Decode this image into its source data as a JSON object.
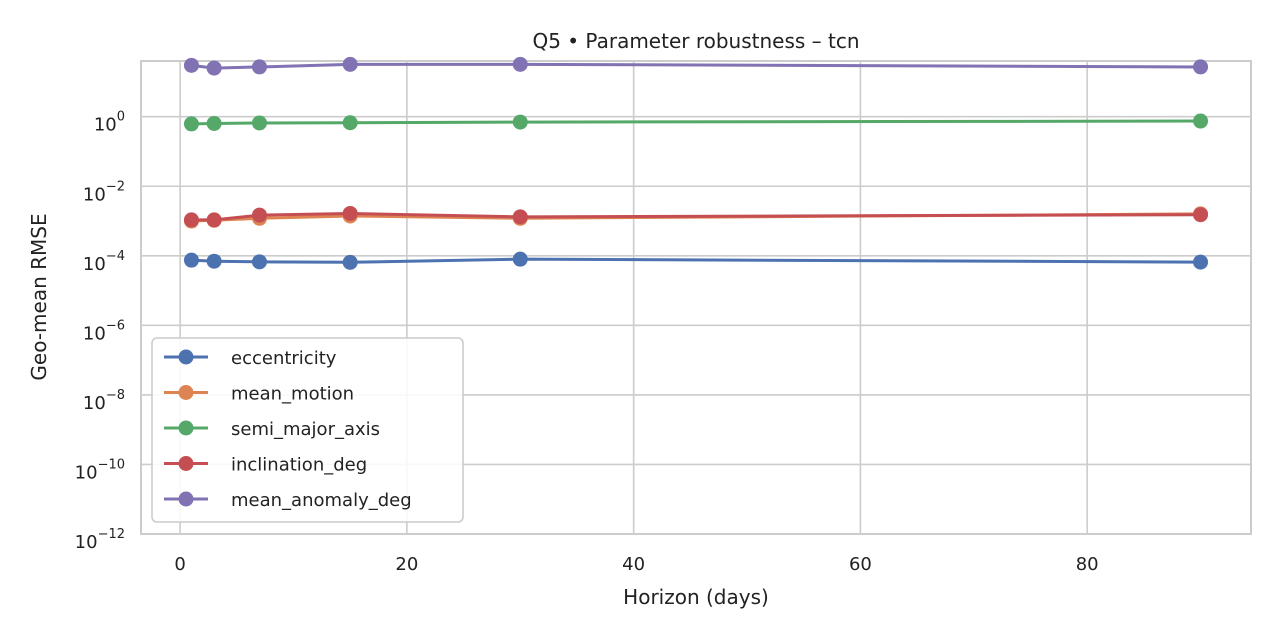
{
  "chart_data": {
    "type": "line",
    "title": "Q5 • Parameter robustness – tcn",
    "xlabel": "Horizon (days)",
    "ylabel": "Geo-mean RMSE",
    "x": [
      1,
      3,
      7,
      15,
      30,
      90
    ],
    "xlim": [
      -3.45,
      94.45
    ],
    "x_ticks": [
      0,
      20,
      40,
      60,
      80
    ],
    "y_scale": "log",
    "ylim": [
      1e-12,
      40
    ],
    "y_ticks": [
      {
        "value": 1e-12,
        "base": "10",
        "exp": "−12"
      },
      {
        "value": 1e-10,
        "base": "10",
        "exp": "−10"
      },
      {
        "value": 1e-08,
        "base": "10",
        "exp": "−8"
      },
      {
        "value": 1e-06,
        "base": "10",
        "exp": "−6"
      },
      {
        "value": 0.0001,
        "base": "10",
        "exp": "−4"
      },
      {
        "value": 0.01,
        "base": "10",
        "exp": "−2"
      },
      {
        "value": 1,
        "base": "10",
        "exp": "0"
      }
    ],
    "grid": true,
    "legend_position": "lower-left",
    "series": [
      {
        "name": "eccentricity",
        "color": "#4c72b0",
        "values": [
          7.5e-05,
          7e-05,
          6.7e-05,
          6.5e-05,
          8e-05,
          6.6e-05
        ]
      },
      {
        "name": "mean_motion",
        "color": "#dd8452",
        "values": [
          0.001,
          0.00105,
          0.0012,
          0.0014,
          0.0012,
          0.0016
        ]
      },
      {
        "name": "semi_major_axis",
        "color": "#55a868",
        "values": [
          0.62,
          0.64,
          0.66,
          0.67,
          0.7,
          0.75
        ]
      },
      {
        "name": "inclination_deg",
        "color": "#c44e52",
        "values": [
          0.00108,
          0.00108,
          0.00148,
          0.00165,
          0.00132,
          0.00152
        ]
      },
      {
        "name": "mean_anomaly_deg",
        "color": "#8172b3",
        "values": [
          30,
          25,
          27,
          32,
          32,
          27
        ]
      }
    ]
  }
}
